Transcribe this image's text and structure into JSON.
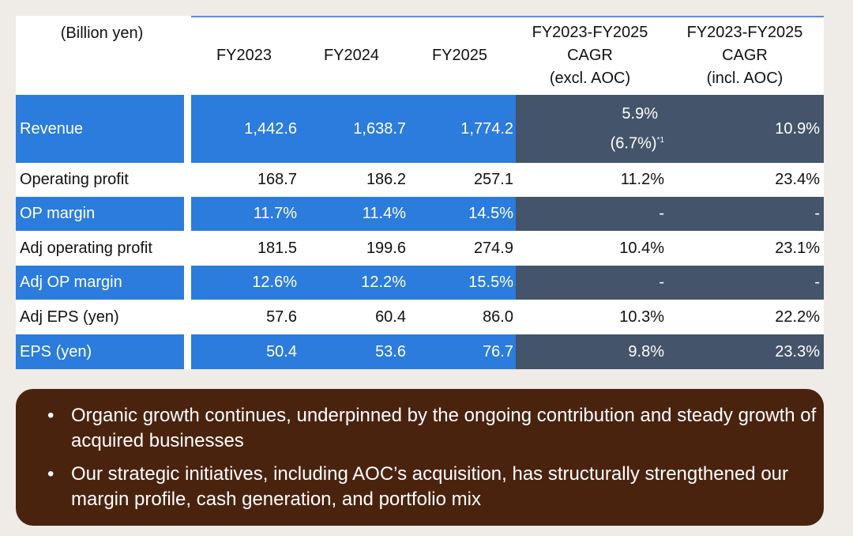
{
  "unit_label": "(Billion yen)",
  "columns": [
    "FY2023",
    "FY2024",
    "FY2025",
    [
      "FY2023-FY2025",
      "CAGR",
      "(excl. AOC)"
    ],
    [
      "FY2023-FY2025",
      "CAGR",
      "(incl. AOC)"
    ]
  ],
  "rows": [
    {
      "label": "Revenue",
      "v": [
        "1,442.6",
        "1,638.7",
        "1,774.2",
        "5.9%",
        "10.9%"
      ],
      "sub": "(6.7%)",
      "sup": "*1"
    },
    {
      "label": "Operating profit",
      "v": [
        "168.7",
        "186.2",
        "257.1",
        "11.2%",
        "23.4%"
      ]
    },
    {
      "label": "OP margin",
      "v": [
        "11.7%",
        "11.4%",
        "14.5%",
        "-",
        "-"
      ]
    },
    {
      "label": "Adj operating profit",
      "v": [
        "181.5",
        "199.6",
        "274.9",
        "10.4%",
        "23.1%"
      ]
    },
    {
      "label": "Adj OP margin",
      "v": [
        "12.6%",
        "12.2%",
        "15.5%",
        "-",
        "-"
      ]
    },
    {
      "label": "Adj EPS (yen)",
      "v": [
        "57.6",
        "60.4",
        "86.0",
        "10.3%",
        "22.2%"
      ]
    },
    {
      "label": "EPS (yen)",
      "v": [
        "50.4",
        "53.6",
        "76.7",
        "9.8%",
        "23.3%"
      ]
    }
  ],
  "notes": [
    "Organic growth continues, underpinned by the ongoing contribution and steady growth of acquired businesses",
    "Our strategic initiatives, including AOC’s acquisition, has structurally strengthened our margin profile, cash generation, and portfolio mix"
  ],
  "bullet": "•"
}
